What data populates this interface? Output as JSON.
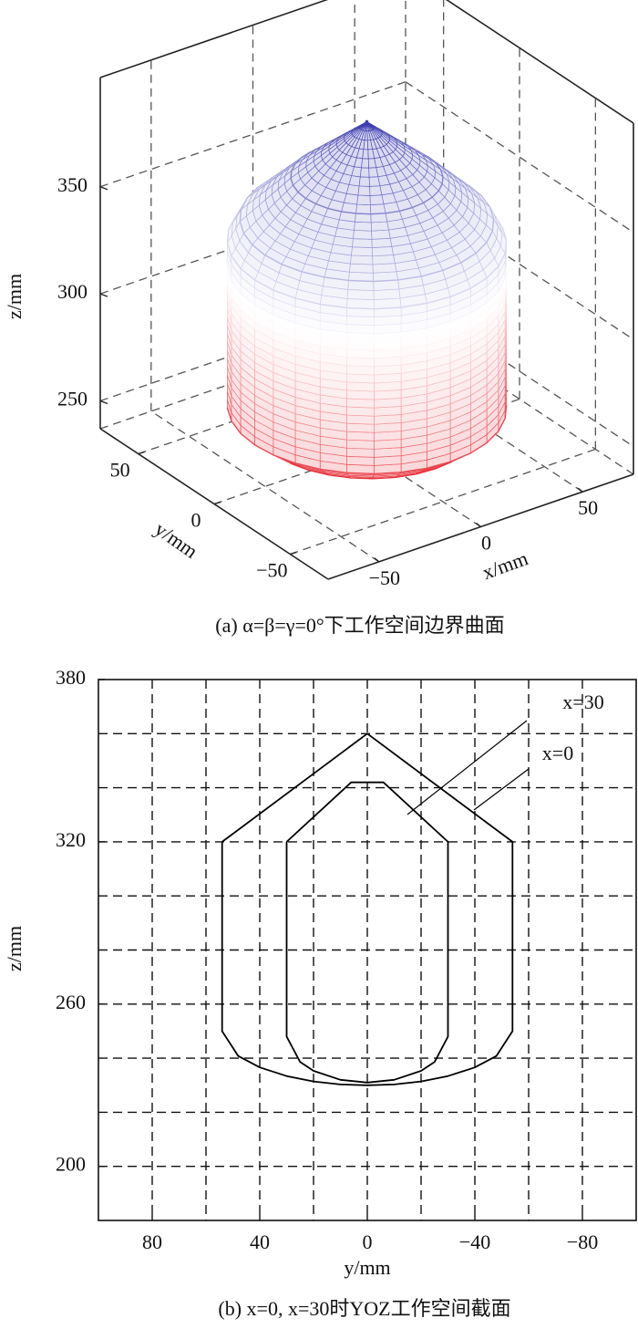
{
  "chart_data": [
    {
      "type": "surface3d",
      "caption": "(a) α=β=γ=0°下工作空间边界曲面",
      "xlabel": "x/mm",
      "ylabel": "y/mm",
      "zlabel": "z/mm",
      "xlim": [
        -75,
        75
      ],
      "ylim": [
        -75,
        75
      ],
      "zlim": [
        237,
        401
      ],
      "xticks": [
        {
          "value": -50,
          "label": "−50"
        },
        0,
        50
      ],
      "yticks": [
        {
          "value": -50,
          "label": "−50"
        },
        0,
        50
      ],
      "zticks": [
        250,
        300,
        350
      ],
      "grid": true,
      "surface": {
        "z": [
          250,
          258,
          335,
          345,
          365,
          391
        ],
        "r": [
          45,
          55,
          55,
          50,
          30,
          0
        ],
        "colors": [
          "#e8333d",
          "#ffffff",
          "#3b3bb0"
        ]
      }
    },
    {
      "type": "line",
      "caption": "(b) x=0, x=30时YOZ工作空间截面",
      "xlabel": "y/mm",
      "ylabel": "z/mm",
      "xlim": [
        100,
        -100
      ],
      "ylim": [
        180,
        380
      ],
      "xticks": [
        80,
        40,
        0,
        {
          "value": -40,
          "label": "−40"
        },
        {
          "value": -80,
          "label": "−80"
        }
      ],
      "yticks": [
        200,
        260,
        320,
        380
      ],
      "xgrid": [
        80,
        60,
        40,
        20,
        0,
        -20,
        -40,
        -60,
        -80
      ],
      "ygrid": [
        200,
        220,
        240,
        260,
        280,
        300,
        320,
        340,
        360
      ],
      "grid": true,
      "series": [
        {
          "name": "x=30",
          "color": "#000000",
          "x": [
            30,
            6,
            -6,
            -30,
            -30,
            -25,
            -20,
            -10,
            0,
            10,
            20,
            25,
            30,
            30
          ],
          "values": [
            320,
            342,
            342,
            320,
            248,
            238.6,
            235.3,
            232,
            231,
            232,
            235.3,
            238.6,
            248,
            320
          ]
        },
        {
          "name": "x=0",
          "color": "#000000",
          "x": [
            54,
            0,
            -54,
            -54,
            -48,
            -40,
            -30,
            -20,
            -10,
            0,
            10,
            20,
            30,
            40,
            48,
            54,
            54
          ],
          "values": [
            320,
            360,
            320,
            250,
            240.8,
            236.6,
            233.4,
            231.4,
            230.3,
            230,
            230.3,
            231.4,
            233.4,
            236.6,
            240.8,
            250,
            320
          ]
        }
      ]
    }
  ]
}
